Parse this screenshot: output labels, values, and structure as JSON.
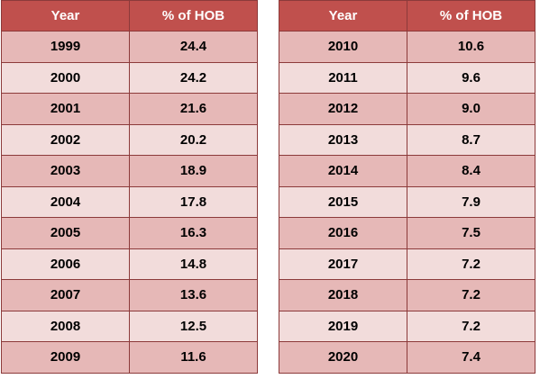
{
  "colors": {
    "header_bg": "#c0504d",
    "row_dark": "#e6b8b7",
    "row_light": "#f2dcdb",
    "border": "#8c3a3a"
  },
  "headers": {
    "year": "Year",
    "pct": "% of HOB"
  },
  "tables": [
    {
      "rows": [
        {
          "year": "1999",
          "pct": "24.4"
        },
        {
          "year": "2000",
          "pct": "24.2"
        },
        {
          "year": "2001",
          "pct": "21.6"
        },
        {
          "year": "2002",
          "pct": "20.2"
        },
        {
          "year": "2003",
          "pct": "18.9"
        },
        {
          "year": "2004",
          "pct": "17.8"
        },
        {
          "year": "2005",
          "pct": "16.3"
        },
        {
          "year": "2006",
          "pct": "14.8"
        },
        {
          "year": "2007",
          "pct": "13.6"
        },
        {
          "year": "2008",
          "pct": "12.5"
        },
        {
          "year": "2009",
          "pct": "11.6"
        }
      ]
    },
    {
      "rows": [
        {
          "year": "2010",
          "pct": "10.6"
        },
        {
          "year": "2011",
          "pct": "9.6"
        },
        {
          "year": "2012",
          "pct": "9.0"
        },
        {
          "year": "2013",
          "pct": "8.7"
        },
        {
          "year": "2014",
          "pct": "8.4"
        },
        {
          "year": "2015",
          "pct": "7.9"
        },
        {
          "year": "2016",
          "pct": "7.5"
        },
        {
          "year": "2017",
          "pct": "7.2"
        },
        {
          "year": "2018",
          "pct": "7.2"
        },
        {
          "year": "2019",
          "pct": "7.2"
        },
        {
          "year": "2020",
          "pct": "7.4"
        }
      ]
    }
  ]
}
